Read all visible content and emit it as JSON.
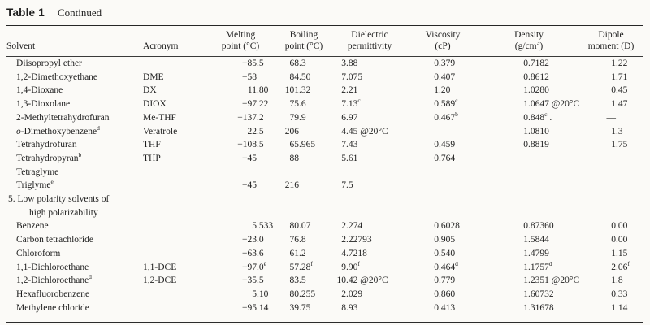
{
  "title": {
    "bold": "Table 1",
    "rest": "Continued"
  },
  "colors": {
    "background": "#fbfaf7",
    "text": "#1e1e1e",
    "rule": "#262626"
  },
  "table": {
    "columns": [
      {
        "id": "solvent",
        "line1": "",
        "line2": "Solvent",
        "numeric": false
      },
      {
        "id": "acronym",
        "line1": "",
        "line2": "Acronym",
        "numeric": false
      },
      {
        "id": "melting-point",
        "line1": "Melting",
        "line2": "point (°C)",
        "numeric": true
      },
      {
        "id": "boiling-point",
        "line1": "Boiling",
        "line2": "point (°C)",
        "numeric": true
      },
      {
        "id": "dielectric-permittivity",
        "line1": "Dielectric",
        "line2": "permittivity",
        "numeric": true
      },
      {
        "id": "viscosity",
        "line1": "Viscosity",
        "line2": "(cP)",
        "numeric": true
      },
      {
        "id": "density",
        "line1": "Density",
        "line2": "(g/cm^3)",
        "numeric": true
      },
      {
        "id": "dipole-moment",
        "line1": "Dipole",
        "line2": "moment (D)",
        "numeric": true
      }
    ],
    "rows": [
      {
        "cells": [
          "Diisopropyl ether",
          "",
          "−85.5",
          "68.3",
          "3.88",
          "0.379",
          "0.7182",
          "1.22"
        ]
      },
      {
        "cells": [
          "1,2-Dimethoxyethane",
          "DME",
          "−58",
          "84.50",
          "7.075",
          "0.407",
          "0.8612",
          "1.71"
        ]
      },
      {
        "cells": [
          "1,4-Dioxane",
          "DX",
          "11.80",
          "101.32",
          "2.21",
          "1.20",
          "1.0280",
          "0.45"
        ]
      },
      {
        "cells": [
          "1,3-Dioxolane",
          "DIOX",
          "−97.22",
          "75.6",
          "7.13^c",
          "0.589^c",
          "1.0647 @20°C",
          "1.47"
        ]
      },
      {
        "cells": [
          "2-Methyltetrahydrofuran",
          "Me-THF",
          "−137.2",
          "79.9",
          "6.97",
          "0.467^b",
          "0.848^c .",
          "—"
        ]
      },
      {
        "cells": [
          "*o*-Dimethoxybenzene^d",
          "Veratrole",
          "22.5",
          "206",
          "4.45 @20°C",
          "",
          "1.0810",
          "1.3"
        ]
      },
      {
        "cells": [
          "Tetrahydrofuran",
          "THF",
          "−108.5",
          "65.965",
          "7.43",
          "0.459",
          "0.8819",
          "1.75"
        ]
      },
      {
        "cells": [
          "Tetrahydropyran^b",
          "THP",
          "−45",
          "88",
          "5.61",
          "0.764",
          "",
          ""
        ]
      },
      {
        "cells": [
          "Tetraglyme",
          "",
          "",
          "",
          "",
          "",
          "",
          ""
        ]
      },
      {
        "cells": [
          "Triglyme^e",
          "",
          "−45",
          "216",
          "7.5",
          "",
          "",
          ""
        ]
      },
      {
        "section": [
          "5. Low polarity solvents of",
          "high polarizability"
        ]
      },
      {
        "cells": [
          "Benzene",
          "",
          "5.533",
          "80.07",
          "2.274",
          "0.6028",
          "0.87360",
          "0.00"
        ]
      },
      {
        "cells": [
          "Carbon tetrachloride",
          "",
          "−23.0",
          "76.8",
          "2.22793",
          "0.905",
          "1.5844",
          "0.00"
        ]
      },
      {
        "cells": [
          "Chloroform",
          "",
          "−63.6",
          "61.2",
          "4.7218",
          "0.540",
          "1.4799",
          "1.15"
        ]
      },
      {
        "cells": [
          "1,1-Dichloroethane",
          "1,1-DCE",
          "−97.0^e",
          "57.28^f",
          "9.90^f",
          "0.464^d",
          "1.1757^d",
          "2.06^f"
        ]
      },
      {
        "cells": [
          "1,2-Dichloroethane^d",
          "1,2-DCE",
          "−35.5",
          "83.5",
          "10.42 @20°C",
          "0.779",
          "1.2351 @20°C",
          "1.8"
        ]
      },
      {
        "cells": [
          "Hexafluorobenzene",
          "",
          "5.10",
          "80.255",
          "2.029",
          "0.860",
          "1.60732",
          "0.33"
        ]
      },
      {
        "cells": [
          "Methylene chloride",
          "",
          "−95.14",
          "39.75",
          "8.93",
          "0.413",
          "1.31678",
          "1.14"
        ]
      }
    ]
  }
}
